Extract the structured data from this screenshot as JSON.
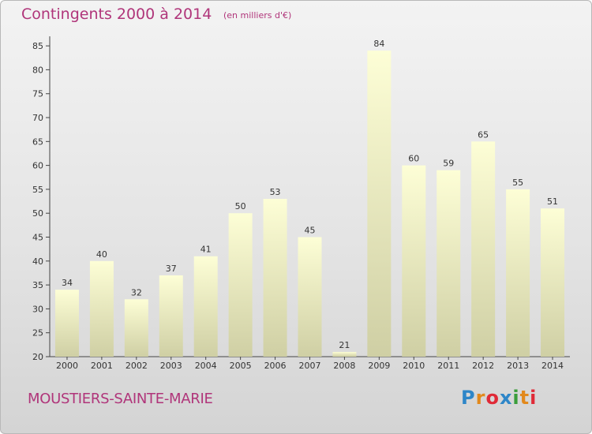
{
  "header": {
    "title": "Contingents 2000 à 2014",
    "subtitle": "(en milliers d'€)"
  },
  "footer": {
    "commune": "MOUSTIERS-SAINTE-MARIE",
    "logo_text": "Proxiti",
    "logo_colors": [
      "#2e86c8",
      "#e2891c",
      "#e02a37",
      "#3a9d3a"
    ]
  },
  "colors": {
    "title": "#b0357a",
    "bar_top": "#fdfed6",
    "bar_bottom": "#cfcfa4",
    "axis": "#333333"
  },
  "chart_data": {
    "type": "bar",
    "title": "Contingents 2000 à 2014",
    "subtitle": "(en milliers d'€)",
    "categories": [
      "2000",
      "2001",
      "2002",
      "2003",
      "2004",
      "2005",
      "2006",
      "2007",
      "2008",
      "2009",
      "2010",
      "2011",
      "2012",
      "2013",
      "2014"
    ],
    "values": [
      34,
      40,
      32,
      37,
      41,
      50,
      53,
      45,
      21,
      84,
      60,
      59,
      65,
      55,
      51
    ],
    "ylim": [
      20,
      87
    ],
    "yticks": [
      20,
      25,
      30,
      35,
      40,
      45,
      50,
      55,
      60,
      65,
      70,
      75,
      80,
      85
    ],
    "grid": false,
    "data_labels": true,
    "xlabel": "",
    "ylabel": ""
  }
}
